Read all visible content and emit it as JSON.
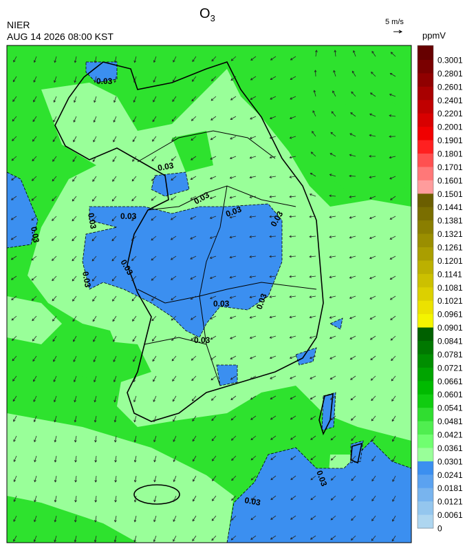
{
  "header": {
    "title": {
      "base": "O",
      "subscript": "3"
    },
    "agency": "NIER",
    "datetime": "AUG 14 2026 08:00 KST",
    "wind_scale": "5 m/s",
    "unit": "ppmV"
  },
  "colorbar": {
    "labels": [
      "0.3001",
      "0.2801",
      "0.2601",
      "0.2401",
      "0.2201",
      "0.2001",
      "0.1901",
      "0.1801",
      "0.1701",
      "0.1601",
      "0.1501",
      "0.1441",
      "0.1381",
      "0.1321",
      "0.1261",
      "0.1201",
      "0.1141",
      "0.1081",
      "0.1021",
      "0.0961",
      "0.0901",
      "0.0841",
      "0.0781",
      "0.0721",
      "0.0661",
      "0.0601",
      "0.0541",
      "0.0481",
      "0.0421",
      "0.0361",
      "0.0301",
      "0.0241",
      "0.0181",
      "0.0121",
      "0.0061",
      "0"
    ],
    "colors": [
      "#660000",
      "#7a0000",
      "#900000",
      "#a80000",
      "#c00000",
      "#d80000",
      "#f00000",
      "#ff2020",
      "#ff5050",
      "#ff7878",
      "#ff9c9c",
      "#6b5e00",
      "#7a6e00",
      "#8a7e00",
      "#9a8e00",
      "#aa9e00",
      "#bcb000",
      "#ccc000",
      "#dcd000",
      "#ece200",
      "#f4f400",
      "#006000",
      "#007800",
      "#008e00",
      "#00a400",
      "#00ba00",
      "#10cc10",
      "#30dd30",
      "#50ee50",
      "#70ff70",
      "#99ff99",
      "#3b8ff0",
      "#5ba2f0",
      "#78b4ee",
      "#94c6ee",
      "#aed6f0"
    ]
  },
  "contour_labels": [
    "0.03",
    "0.03",
    "0.03",
    "0.03",
    "0.03",
    "0.03",
    "0.03",
    "0.03",
    "0.03",
    "0.03",
    "0.03",
    "0.03",
    "0.03",
    "0.03",
    "0.03"
  ]
}
